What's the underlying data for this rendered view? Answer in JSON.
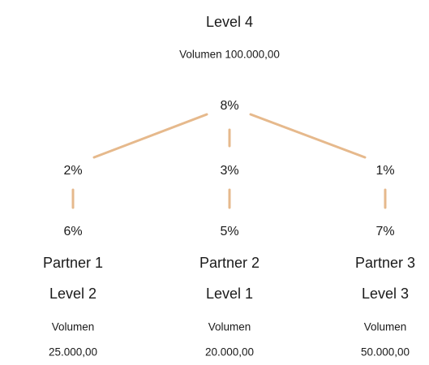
{
  "root": {
    "level": "Level 4",
    "volume": "Volumen 100.000,00",
    "percent": "8%"
  },
  "nodes": [
    {
      "percent_top": "2%",
      "percent_bottom": "6%",
      "name": "Partner 1",
      "level": "Level 2",
      "volume_label": "Volumen",
      "volume": "25.000,00"
    },
    {
      "percent_top": "3%",
      "percent_bottom": "5%",
      "name": "Partner 2",
      "level": "Level 1",
      "volume_label": "Volumen",
      "volume": "20.000,00"
    },
    {
      "percent_top": "1%",
      "percent_bottom": "7%",
      "name": "Partner 3",
      "level": "Level 3",
      "volume_label": "Volumen",
      "volume": "50.000,00"
    }
  ]
}
